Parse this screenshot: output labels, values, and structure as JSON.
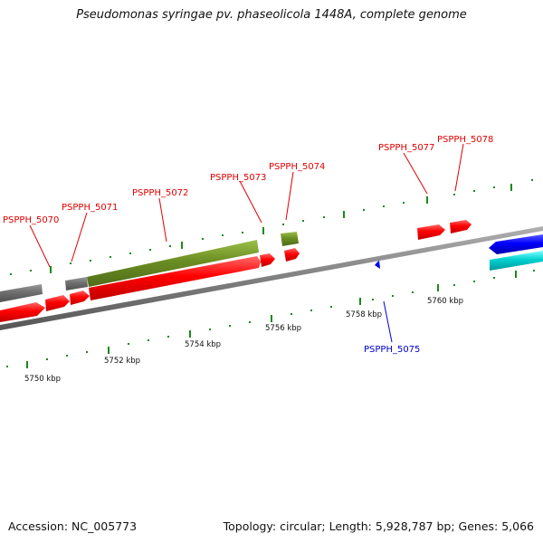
{
  "title": "Pseudomonas syringae pv. phaseolicola 1448A, complete genome",
  "footer": {
    "accession": "Accession: NC_005773",
    "summary": "Topology: circular; Length: 5,928,787 bp; Genes: 5,066"
  },
  "colors": {
    "forward_cds": "#ff0000",
    "reverse_cds": "#0000ff",
    "rna": "#6b8e23",
    "other": "#707070",
    "cyan": "#00cccc",
    "backbone": "#808080",
    "tick": "#1a8a1a"
  },
  "scale_labels": [
    "5750 kbp",
    "5752 kbp",
    "5754 kbp",
    "5756 kbp",
    "5758 kbp",
    "5760 kbp"
  ],
  "gene_labels": [
    {
      "text": "PSPPH_5070",
      "color": "red"
    },
    {
      "text": "PSPPH_5071",
      "color": "red"
    },
    {
      "text": "PSPPH_5072",
      "color": "red"
    },
    {
      "text": "PSPPH_5073",
      "color": "red"
    },
    {
      "text": "PSPPH_5074",
      "color": "red"
    },
    {
      "text": "PSPPH_5075",
      "color": "blue"
    },
    {
      "text": "PSPPH_5077",
      "color": "red"
    },
    {
      "text": "PSPPH_5078",
      "color": "red"
    }
  ]
}
